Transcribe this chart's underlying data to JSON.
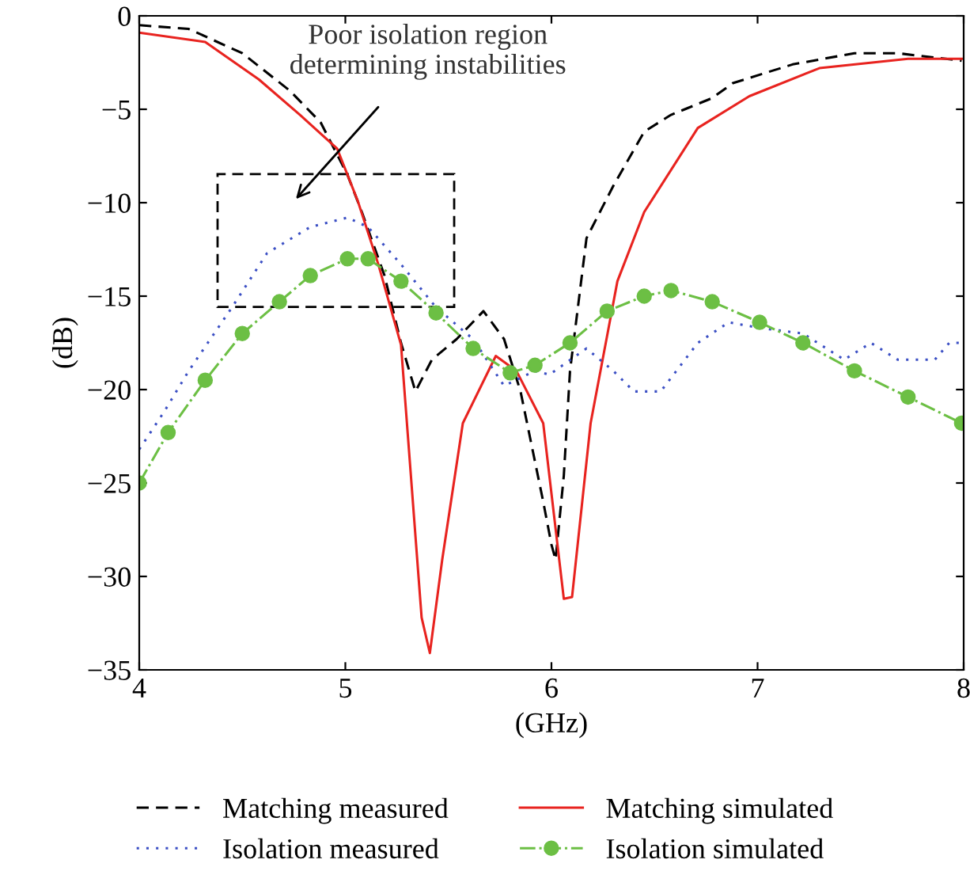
{
  "chart_data": {
    "type": "line",
    "xlabel": "(GHz)",
    "ylabel": "(dB)",
    "xlim": [
      4,
      8
    ],
    "ylim": [
      -35,
      0
    ],
    "xticks": [
      4,
      5,
      6,
      7,
      8
    ],
    "yticks": [
      -35,
      -30,
      -25,
      -20,
      -15,
      -10,
      -5,
      0
    ],
    "grid": false,
    "legend": "bottom",
    "annotations": [
      "Poor isolation region\ndetermining instabilities"
    ],
    "series": [
      {
        "name": "Matching measured",
        "color": "#000000",
        "line_style": "dashed",
        "marker": "none",
        "x": [
          4,
          4.24,
          4.5,
          4.73,
          4.88,
          5.01,
          5.08,
          5.19,
          5.27,
          5.34,
          5.42,
          5.54,
          5.67,
          5.77,
          5.85,
          5.96,
          6.0,
          6.02,
          6.06,
          6.09,
          6.17,
          6.3,
          6.45,
          6.58,
          6.78,
          6.88,
          7.17,
          7.47,
          7.68,
          7.99
        ],
        "values": [
          -0.5,
          -0.7,
          -2.0,
          -4.0,
          -5.7,
          -8.5,
          -10.5,
          -13.9,
          -17.5,
          -20.1,
          -18.4,
          -17.3,
          -15.8,
          -17.3,
          -20.1,
          -26,
          -28.3,
          -29.1,
          -24.6,
          -19,
          -11.9,
          -9.1,
          -6.2,
          -5.3,
          -4.4,
          -3.6,
          -2.6,
          -2.0,
          -2.0,
          -2.4
        ]
      },
      {
        "name": "Matching simulated",
        "color": "#e8231f",
        "line_style": "solid",
        "marker": "none",
        "x": [
          4,
          4.32,
          4.58,
          4.78,
          4.96,
          5.06,
          5.16,
          5.27,
          5.37,
          5.41,
          5.47,
          5.57,
          5.73,
          5.83,
          5.96,
          6.06,
          6.1,
          6.19,
          6.32,
          6.45,
          6.71,
          6.96,
          7.3,
          7.73,
          7.99
        ],
        "values": [
          -0.9,
          -1.4,
          -3.4,
          -5.3,
          -7.1,
          -9.9,
          -13.3,
          -17.6,
          -32.2,
          -34.1,
          -29.1,
          -21.8,
          -18.2,
          -19,
          -21.8,
          -31.2,
          -31.1,
          -21.8,
          -14.2,
          -10.5,
          -6.0,
          -4.3,
          -2.8,
          -2.3,
          -2.3
        ]
      },
      {
        "name": "Isolation measured",
        "color": "#3b4fc4",
        "line_style": "dotted",
        "marker": "none",
        "x": [
          4,
          4.12,
          4.24,
          4.45,
          4.62,
          4.83,
          5.01,
          5.11,
          5.27,
          5.44,
          5.62,
          5.77,
          5.92,
          5.99,
          6.17,
          6.3,
          6.4,
          6.53,
          6.71,
          6.86,
          7.01,
          7.22,
          7.42,
          7.55,
          7.68,
          7.86,
          7.93,
          7.99
        ],
        "values": [
          -23.2,
          -21.2,
          -19,
          -15.6,
          -12.7,
          -11.3,
          -10.8,
          -11.3,
          -13.3,
          -15.6,
          -17.3,
          -19.8,
          -19,
          -19.2,
          -17.8,
          -19,
          -20.1,
          -20.1,
          -17.5,
          -16.4,
          -16.7,
          -17.0,
          -18.4,
          -17.5,
          -18.4,
          -18.4,
          -17.5,
          -17.5
        ]
      },
      {
        "name": "Isolation simulated",
        "color": "#6cbf44",
        "line_style": "dashdot",
        "marker": "circle",
        "x": [
          4,
          4.14,
          4.32,
          4.5,
          4.68,
          4.83,
          5.01,
          5.11,
          5.27,
          5.44,
          5.62,
          5.8,
          5.92,
          6.09,
          6.27,
          6.45,
          6.58,
          6.78,
          7.01,
          7.22,
          7.47,
          7.73,
          7.99
        ],
        "values": [
          -25,
          -22.3,
          -19.5,
          -17,
          -15.3,
          -13.9,
          -13.0,
          -13.0,
          -14.2,
          -15.9,
          -17.8,
          -19.1,
          -18.7,
          -17.5,
          -15.8,
          -15.0,
          -14.7,
          -15.3,
          -16.4,
          -17.5,
          -19,
          -20.4,
          -21.8
        ]
      }
    ]
  }
}
